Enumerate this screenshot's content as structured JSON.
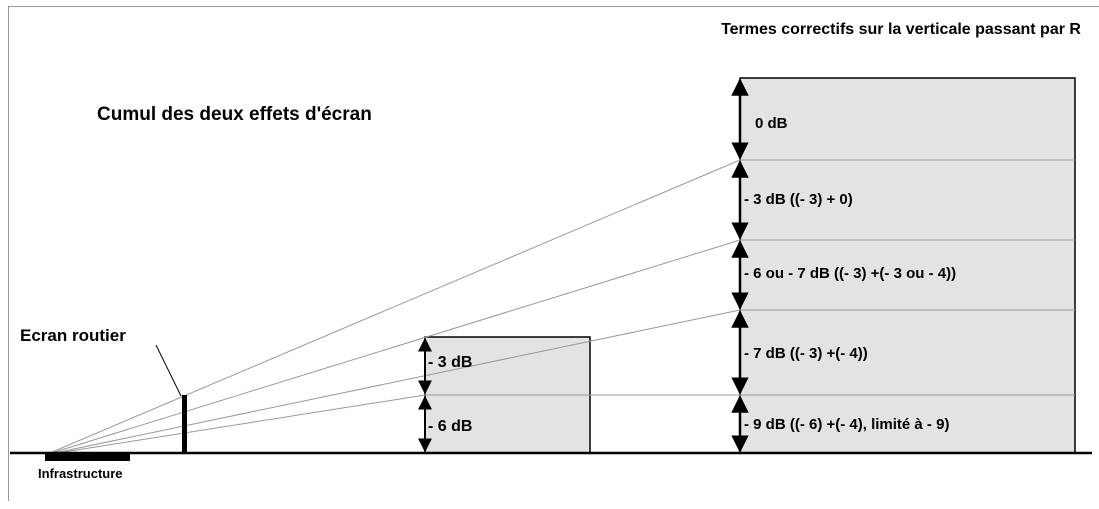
{
  "title": "Cumul des deux effets d'écran",
  "right_heading": "Termes correctifs sur la verticale passant par R",
  "screen_label": "Ecran routier",
  "source_label": "Infrastructure",
  "small_building": {
    "zones": [
      "- 3 dB",
      "- 6 dB"
    ]
  },
  "big_building": {
    "zones": [
      "0 dB",
      "- 3 dB   ((- 3) + 0)",
      "- 6 ou - 7 dB   ((- 3) +(- 3 ou - 4))",
      "- 7 dB   ((- 3) +(- 4))",
      "- 9 dB   ((- 6) +(- 4), limité à - 9)"
    ]
  },
  "colors": {
    "building_fill": "#e3e3e3",
    "line": "#000000",
    "ray": "#999999"
  }
}
